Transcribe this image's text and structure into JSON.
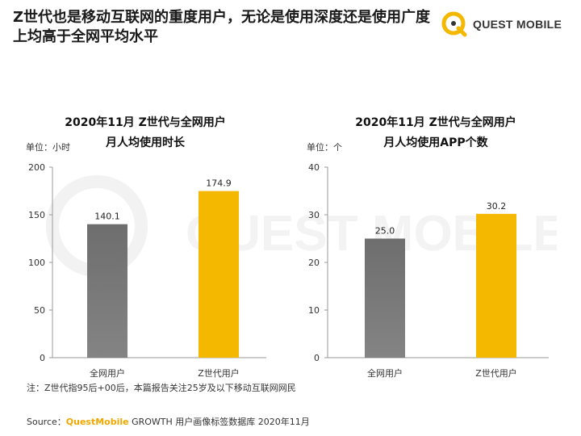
{
  "headline": "Z世代也是移动互联网的重度用户，无论是使用深度还是使用广度上均高于全网平均水平",
  "brand": {
    "name": "QUEST MOBILE",
    "accent": "#f5b800"
  },
  "watermark": "QUEST MOBILE",
  "chart_data": [
    {
      "type": "bar",
      "title_line1": "2020年11月 Z世代与全网用户",
      "title_line2": "月人均使用时长",
      "unit": "单位：小时",
      "categories": [
        "全网用户",
        "Z世代用户"
      ],
      "values": [
        140.1,
        174.9
      ],
      "value_labels": [
        "140.1",
        "174.9"
      ],
      "ylim": [
        0,
        200
      ],
      "yticks": [
        0,
        50,
        100,
        150,
        200
      ],
      "colors": [
        "#6e6e6e",
        "#f5b800"
      ]
    },
    {
      "type": "bar",
      "title_line1": "2020年11月 Z世代与全网用户",
      "title_line2": "月人均使用APP个数",
      "unit": "单位：个",
      "categories": [
        "全网用户",
        "Z世代用户"
      ],
      "values": [
        25.0,
        30.2
      ],
      "value_labels": [
        "25.0",
        "30.2"
      ],
      "ylim": [
        0,
        40
      ],
      "yticks": [
        0,
        10,
        20,
        30,
        40
      ],
      "colors": [
        "#6e6e6e",
        "#f5b800"
      ]
    }
  ],
  "note": "注：Z世代指95后+00后，本篇报告关注25岁及以下移动互联网网民",
  "source": {
    "prefix": "Source：",
    "brand": "QuestMobile",
    "rest": " GROWTH 用户画像标签数据库 2020年11月"
  }
}
